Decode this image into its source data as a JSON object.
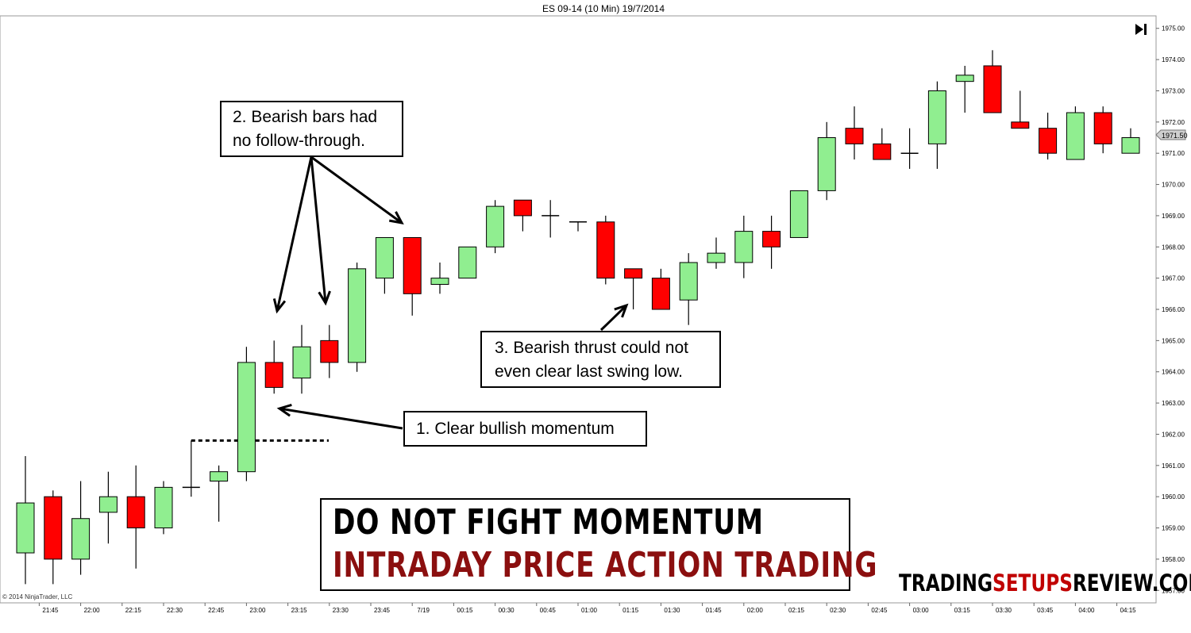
{
  "chart_data": {
    "type": "candlestick",
    "title": "ES 09-14 (10 Min)  19/7/2014",
    "ylim": [
      1956.6,
      1975.4
    ],
    "y_ticks": [
      "1957.00",
      "1958.00",
      "1959.00",
      "1960.00",
      "1961.00",
      "1962.00",
      "1963.00",
      "1964.00",
      "1965.00",
      "1966.00",
      "1967.00",
      "1968.00",
      "1969.00",
      "1970.00",
      "1971.00",
      "1972.00",
      "1973.00",
      "1974.00",
      "1975.00"
    ],
    "last_price": "1971.50",
    "x_ticks": [
      "21:45",
      "22:00",
      "22:15",
      "22:30",
      "22:45",
      "23:00",
      "23:15",
      "23:30",
      "23:45",
      "7/19",
      "00:15",
      "00:30",
      "00:45",
      "01:00",
      "01:15",
      "01:30",
      "01:45",
      "02:00",
      "02:15",
      "02:30",
      "02:45",
      "03:00",
      "03:15",
      "03:30",
      "03:45",
      "04:00",
      "04:15"
    ],
    "candles": [
      {
        "o": 1958.2,
        "h": 1961.3,
        "l": 1957.2,
        "c": 1959.8
      },
      {
        "o": 1960.0,
        "h": 1960.2,
        "l": 1957.2,
        "c": 1958.0
      },
      {
        "o": 1958.0,
        "h": 1960.5,
        "l": 1957.5,
        "c": 1959.3
      },
      {
        "o": 1959.5,
        "h": 1960.8,
        "l": 1958.5,
        "c": 1960.0
      },
      {
        "o": 1960.0,
        "h": 1961.0,
        "l": 1957.7,
        "c": 1959.0
      },
      {
        "o": 1959.0,
        "h": 1960.5,
        "l": 1958.8,
        "c": 1960.3
      },
      {
        "o": 1960.3,
        "h": 1961.8,
        "l": 1960.0,
        "c": 1960.3
      },
      {
        "o": 1960.5,
        "h": 1961.0,
        "l": 1959.2,
        "c": 1960.8
      },
      {
        "o": 1960.8,
        "h": 1964.8,
        "l": 1960.5,
        "c": 1964.3
      },
      {
        "o": 1964.3,
        "h": 1965.0,
        "l": 1963.3,
        "c": 1963.5
      },
      {
        "o": 1963.8,
        "h": 1965.5,
        "l": 1963.3,
        "c": 1964.8
      },
      {
        "o": 1965.0,
        "h": 1965.5,
        "l": 1963.8,
        "c": 1964.3
      },
      {
        "o": 1964.3,
        "h": 1967.5,
        "l": 1964.0,
        "c": 1967.3
      },
      {
        "o": 1967.0,
        "h": 1968.3,
        "l": 1966.5,
        "c": 1968.3
      },
      {
        "o": 1968.3,
        "h": 1968.3,
        "l": 1965.8,
        "c": 1966.5
      },
      {
        "o": 1966.8,
        "h": 1967.5,
        "l": 1966.5,
        "c": 1967.0
      },
      {
        "o": 1967.0,
        "h": 1968.0,
        "l": 1967.0,
        "c": 1968.0
      },
      {
        "o": 1968.0,
        "h": 1969.5,
        "l": 1967.8,
        "c": 1969.3
      },
      {
        "o": 1969.5,
        "h": 1969.5,
        "l": 1968.5,
        "c": 1969.0
      },
      {
        "o": 1969.0,
        "h": 1969.5,
        "l": 1968.3,
        "c": 1969.0
      },
      {
        "o": 1968.8,
        "h": 1968.8,
        "l": 1968.5,
        "c": 1968.8
      },
      {
        "o": 1968.8,
        "h": 1969.0,
        "l": 1966.8,
        "c": 1967.0
      },
      {
        "o": 1967.3,
        "h": 1967.3,
        "l": 1966.0,
        "c": 1967.0
      },
      {
        "o": 1967.0,
        "h": 1967.3,
        "l": 1966.0,
        "c": 1966.0
      },
      {
        "o": 1966.3,
        "h": 1967.8,
        "l": 1965.5,
        "c": 1967.5
      },
      {
        "o": 1967.5,
        "h": 1968.3,
        "l": 1967.3,
        "c": 1967.8
      },
      {
        "o": 1967.5,
        "h": 1969.0,
        "l": 1967.0,
        "c": 1968.5
      },
      {
        "o": 1968.5,
        "h": 1969.0,
        "l": 1967.3,
        "c": 1968.0
      },
      {
        "o": 1968.3,
        "h": 1969.8,
        "l": 1968.3,
        "c": 1969.8
      },
      {
        "o": 1969.8,
        "h": 1972.0,
        "l": 1969.5,
        "c": 1971.5
      },
      {
        "o": 1971.8,
        "h": 1972.5,
        "l": 1970.8,
        "c": 1971.3
      },
      {
        "o": 1971.3,
        "h": 1971.8,
        "l": 1970.8,
        "c": 1970.8
      },
      {
        "o": 1971.0,
        "h": 1971.8,
        "l": 1970.5,
        "c": 1971.0
      },
      {
        "o": 1971.3,
        "h": 1973.3,
        "l": 1970.5,
        "c": 1973.0
      },
      {
        "o": 1973.3,
        "h": 1973.8,
        "l": 1972.3,
        "c": 1973.5
      },
      {
        "o": 1973.8,
        "h": 1974.3,
        "l": 1972.3,
        "c": 1972.3
      },
      {
        "o": 1972.0,
        "h": 1973.0,
        "l": 1971.8,
        "c": 1971.8
      },
      {
        "o": 1971.8,
        "h": 1972.3,
        "l": 1970.8,
        "c": 1971.0
      },
      {
        "o": 1970.8,
        "h": 1972.5,
        "l": 1970.8,
        "c": 1972.3
      },
      {
        "o": 1972.3,
        "h": 1972.5,
        "l": 1971.0,
        "c": 1971.3
      },
      {
        "o": 1971.0,
        "h": 1971.8,
        "l": 1971.0,
        "c": 1971.5
      }
    ],
    "reference_line": {
      "y": 1961.8
    },
    "colors": {
      "up": "#90ee90",
      "down": "#ff0000",
      "outline": "#000000"
    }
  },
  "copyright": "© 2014 NinjaTrader, LLC",
  "annotations": {
    "a1": "1. Clear bullish  momentum",
    "a2_line1": "2. Bearish bars had",
    "a2_line2": "no follow-through.",
    "a3_line1": "3. Bearish thrust could not",
    "a3_line2": "even clear last swing low."
  },
  "title_box": {
    "line1": "DO NOT FIGHT MOMENTUM",
    "line2": "INTRADAY PRICE ACTION TRADING",
    "line1_color": "#000000",
    "line2_color": "#8b0f0f"
  },
  "brand": {
    "part1": "TRADING",
    "part2": "SETUPS",
    "part3": "REVIEW.COM",
    "color_main": "#000000",
    "color_accent": "#c00000"
  },
  "icons": {
    "skip-to-end": "skip-to-end-icon"
  }
}
